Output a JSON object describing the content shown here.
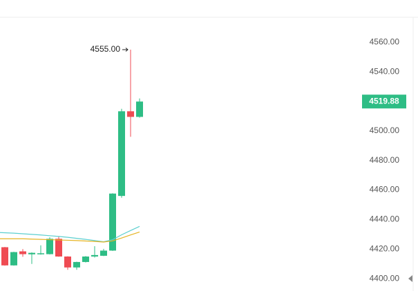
{
  "chart_data": {
    "type": "candlestick",
    "ylim": [
      4394,
      4576
    ],
    "yticks": [
      {
        "value": 4400,
        "label": "4400.00"
      },
      {
        "value": 4420,
        "label": "4420.00"
      },
      {
        "value": 4440,
        "label": "4440.00"
      },
      {
        "value": 4460,
        "label": "4460.00"
      },
      {
        "value": 4480,
        "label": "4480.00"
      },
      {
        "value": 4500,
        "label": "4500.00"
      },
      {
        "value": 4520,
        "label": "4520.00"
      },
      {
        "value": 4540,
        "label": "4540.00"
      },
      {
        "value": 4560,
        "label": "4560.00"
      }
    ],
    "up_color": "#2ebd85",
    "down_color": "#ef4b53",
    "open": [
      4421.3,
      4409,
      4418.5,
      4416.5,
      4417,
      4416.6,
      4427,
      4415,
      4407.6,
      4411.3,
      4415,
      4415.5,
      4419,
      4456,
      4513.3,
      4509.5
    ],
    "high": [
      4421.5,
      4418.2,
      4420,
      4417.8,
      4422.6,
      4428,
      4428.4,
      4415.2,
      4411.5,
      4415.3,
      4422,
      4420.2,
      4457.8,
      4515,
      4555,
      4522
    ],
    "low": [
      4408.8,
      4408.8,
      4414.8,
      4410,
      4416.3,
      4416.4,
      4414.8,
      4406,
      4406,
      4411,
      4414.3,
      4415.3,
      4418.8,
      4454.8,
      4496,
      4509
    ],
    "close": [
      4409,
      4418,
      4416.6,
      4417.5,
      4417.2,
      4427,
      4415,
      4407.6,
      4411.3,
      4415,
      4416,
      4419,
      4457.6,
      4513.3,
      4509.5,
      4519.88
    ],
    "series": [
      {
        "color": "#5ccfcf",
        "values": [
          4431.2,
          4430.8,
          4430.4,
          4430,
          4429.6,
          4429.1,
          4428.6,
          4428,
          4427.3,
          4426.6,
          4425.8,
          4425,
          4426.4,
          4429.7,
          4432.6,
          4435.4
        ]
      },
      {
        "color": "#e6b422",
        "values": [
          4427,
          4427,
          4427,
          4426.8,
          4426.6,
          4426.4,
          4426.2,
          4426,
          4425.8,
          4425.5,
          4425.2,
          4424.8,
          4425.6,
          4427.5,
          4429.6,
          4431.6
        ]
      }
    ],
    "annotation": {
      "value": 4555,
      "label": "4555.00"
    },
    "last_price": 4519.88
  }
}
